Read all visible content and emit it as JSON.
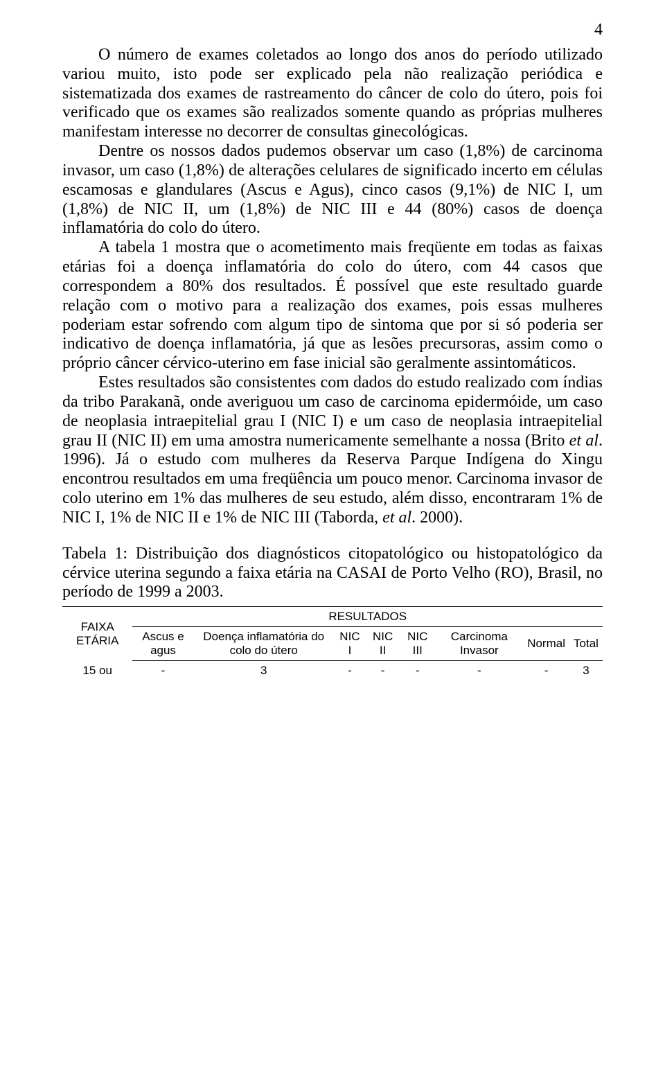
{
  "page_number": "4",
  "paragraphs": {
    "p1": "O número de exames coletados ao longo dos anos do período utilizado variou muito, isto pode ser explicado pela não realização periódica e sistematizada dos exames de rastreamento do câncer de colo do útero, pois foi verificado que os exames são realizados somente quando as próprias mulheres manifestam interesse no decorrer de consultas ginecológicas.",
    "p2": "Dentre os nossos dados pudemos observar um caso (1,8%) de carcinoma invasor, um caso (1,8%) de alterações celulares de significado incerto em células escamosas e glandulares (Ascus e Agus), cinco casos (9,1%) de NIC I, um (1,8%) de NIC II, um (1,8%) de NIC III e 44 (80%) casos de doença inflamatória do colo do útero.",
    "p3_a": "A tabela 1 mostra que o acometimento mais freqüente em todas as faixas etárias foi a doença inflamatória do colo do útero, com 44 casos que correspondem a 80% dos resultados. É possível que este resultado guarde relação com o motivo para a realização dos exames, pois essas mulheres poderiam estar sofrendo com algum tipo de sintoma que por si só poderia ser indicativo de doença inflamatória, já que as lesões precursoras, assim como o próprio câncer cérvico-uterino em fase inicial são geralmente assintomáticos.",
    "p4_a": "Estes resultados são consistentes com dados do estudo realizado com índias da tribo Parakanã, onde averiguou um caso de carcinoma epidermóide, um caso de neoplasia intraepitelial grau I (NIC I) e um caso de neoplasia intraepitelial grau II (NIC II) em uma amostra numericamente semelhante a nossa (Brito ",
    "p4_b": "et al",
    "p4_c": ". 1996). Já o estudo com mulheres da Reserva Parque Indígena do Xingu encontrou resultados em uma freqüência um pouco menor. Carcinoma invasor de colo uterino em 1% das mulheres de seu estudo, além disso, encontraram 1% de NIC I, 1% de NIC II e 1% de NIC III (Taborda, ",
    "p4_d": "et al",
    "p4_e": ". 2000)."
  },
  "table_caption": "Tabela 1: Distribuição dos diagnósticos citopatológico ou histopatológico da cérvice uterina segundo a faixa etária na CASAI de Porto Velho (RO), Brasil, no período de 1999 a 2003.",
  "table": {
    "col_faixa": "FAIXA ETÁRIA",
    "results_label": "RESULTADOS",
    "headers": {
      "ascus": "Ascus e agus",
      "doenca": "Doença inflamatória do colo do útero",
      "nic1": "NIC I",
      "nic2": "NIC II",
      "nic3": "NIC III",
      "carcinoma": "Carcinoma Invasor",
      "normal": "Normal",
      "total": "Total"
    },
    "row1": {
      "faixa": "15 ou",
      "ascus": "-",
      "doenca": "3",
      "nic1": "-",
      "nic2": "-",
      "nic3": "-",
      "carcinoma": "-",
      "normal": "-",
      "total": "3"
    }
  },
  "style": {
    "background_color": "#ffffff",
    "text_color": "#000000",
    "body_font": "Times New Roman",
    "table_font": "Arial",
    "body_fontsize": 24,
    "table_fontsize": 17
  }
}
